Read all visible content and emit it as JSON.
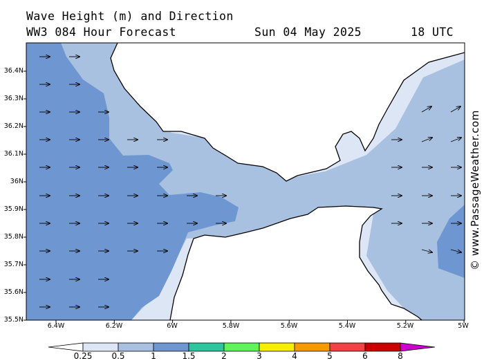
{
  "header": {
    "line1": "Wave Height (m) and Direction",
    "line2": "WW3 084 Hour Forecast",
    "date": "Sun 04 May 2025",
    "time": "18 UTC"
  },
  "map": {
    "colors": {
      "land": "#ffffff",
      "lt025": "#dde6f4",
      "b025_05": "#a8c1e1",
      "b05_1": "#6e96d0",
      "coast": "#000000"
    },
    "lat_labels": [
      "36.4N",
      "36.3N",
      "36.2N",
      "36.1N",
      "36N",
      "35.9N",
      "35.8N",
      "35.7N",
      "35.6N",
      "35.5N"
    ],
    "lon_labels": [
      "6.4W",
      "6.2W",
      "6W",
      "5.8W",
      "5.6W",
      "5.4W",
      "5.2W",
      "5W"
    ],
    "arrow_direction": "eastward (waves propagating towards the east)"
  },
  "watermark": "© www.PassageWeather.com",
  "colorbar": {
    "labels": [
      "0.25",
      "0.5",
      "1",
      "1.5",
      "2",
      "3",
      "4",
      "5",
      "6",
      "8"
    ],
    "colors": [
      "#ffffff",
      "#dde6f4",
      "#a8c1e1",
      "#6e96d0",
      "#2dc69c",
      "#5ef45a",
      "#f6ef00",
      "#f79a00",
      "#ef4444",
      "#c80000",
      "#cc00cc"
    ]
  }
}
